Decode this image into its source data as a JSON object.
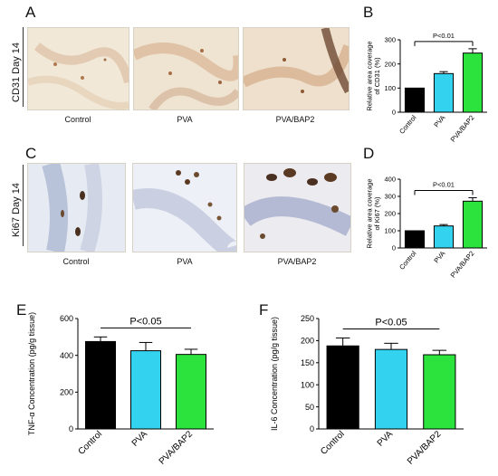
{
  "panels": {
    "A": {
      "letter": "A",
      "row_label": "CD31 Day 14",
      "captions": [
        "Control",
        "PVA",
        "PVA/BAP2"
      ]
    },
    "C": {
      "letter": "C",
      "row_label": "Ki67 Day 14",
      "captions": [
        "Control",
        "PVA",
        "PVA/BAP2"
      ]
    },
    "B": {
      "letter": "B"
    },
    "D": {
      "letter": "D"
    },
    "E": {
      "letter": "E"
    },
    "F": {
      "letter": "F"
    }
  },
  "colors": {
    "control": "#000000",
    "pva": "#33d3f0",
    "pva_bap2": "#2be33c"
  },
  "chart_data": [
    {
      "id": "B",
      "type": "bar",
      "categories": [
        "Control",
        "PVA",
        "PVA/BAP2"
      ],
      "values": [
        100,
        160,
        245
      ],
      "errors": [
        0,
        8,
        18
      ],
      "ylabel": "Relative area coverage of CD31 (%)",
      "ylim": [
        0,
        300
      ],
      "yticks": [
        0,
        100,
        200,
        300
      ],
      "annotation": "P<0.01"
    },
    {
      "id": "D",
      "type": "bar",
      "categories": [
        "Control",
        "PVA",
        "PVA/BAP2"
      ],
      "values": [
        100,
        128,
        272
      ],
      "errors": [
        0,
        8,
        20
      ],
      "ylabel": "Relative area coverage of Ki67 (%)",
      "ylim": [
        0,
        400
      ],
      "yticks": [
        0,
        100,
        200,
        300,
        400
      ],
      "annotation": "P<0.01"
    },
    {
      "id": "E",
      "type": "bar",
      "categories": [
        "Control",
        "PVA",
        "PVA/BAP2"
      ],
      "values": [
        475,
        425,
        405
      ],
      "errors": [
        25,
        45,
        28
      ],
      "ylabel": "TNF-α Concentration (pg/g tissue)",
      "ylim": [
        0,
        600
      ],
      "yticks": [
        0,
        200,
        400,
        600
      ],
      "annotation": "P<0.05"
    },
    {
      "id": "F",
      "type": "bar",
      "categories": [
        "Control",
        "PVA",
        "PVA/BAP2"
      ],
      "values": [
        188,
        180,
        168
      ],
      "errors": [
        18,
        14,
        10
      ],
      "ylabel": "IL-6 Concentration (pg/g tissue)",
      "ylim": [
        0,
        250
      ],
      "yticks": [
        0,
        50,
        100,
        150,
        200,
        250
      ],
      "annotation": "P<0.05"
    }
  ]
}
